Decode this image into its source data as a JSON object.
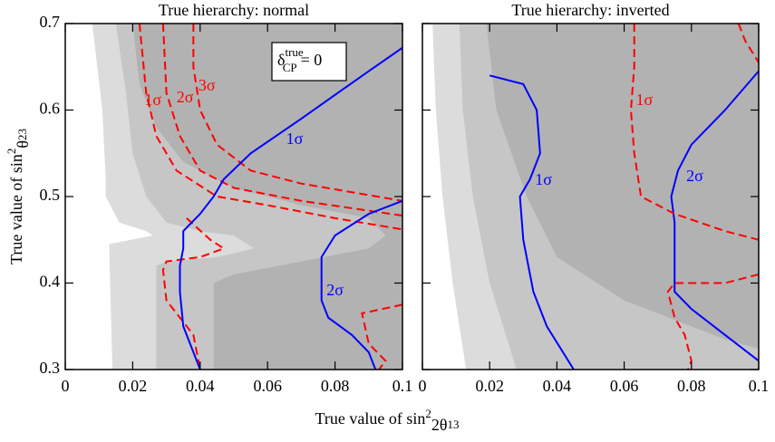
{
  "chart_data": [
    {
      "type": "contour",
      "title": "True hierarchy: normal",
      "x_label": [
        "True value of sin",
        "2",
        "2θ",
        "13"
      ],
      "y_label": [
        "True value of sin",
        "2",
        "θ",
        "23"
      ],
      "note": [
        "δ",
        "true",
        "CP",
        "= 0"
      ],
      "xlim": [
        0,
        0.1
      ],
      "ylim": [
        0.3,
        0.7
      ],
      "xticks": [
        0,
        0.02,
        0.04,
        0.06,
        0.08,
        0.1
      ],
      "yticks": [
        0.3,
        0.4,
        0.5,
        0.6,
        0.7
      ],
      "regions": [
        {
          "color": "#dcdcdc",
          "x": [
            0.008,
            0.011,
            0.012,
            0.012,
            0.016,
            0.024,
            0.026,
            0.022,
            0.013,
            0.014,
            0.1,
            0.1
          ],
          "y": [
            0.7,
            0.6,
            0.52,
            0.5,
            0.47,
            0.46,
            0.455,
            0.452,
            0.445,
            0.3,
            0.3,
            0.7
          ]
        },
        {
          "color": "#c6c6c6",
          "x": [
            0.015,
            0.018,
            0.02,
            0.024,
            0.03,
            0.04,
            0.05,
            0.056,
            0.045,
            0.03,
            0.027,
            0.027,
            0.1,
            0.1
          ],
          "y": [
            0.7,
            0.62,
            0.55,
            0.5,
            0.47,
            0.46,
            0.455,
            0.44,
            0.43,
            0.425,
            0.42,
            0.3,
            0.3,
            0.7
          ]
        },
        {
          "color": "#b2b2b2",
          "x": [
            0.02,
            0.022,
            0.027,
            0.035,
            0.05,
            0.07,
            0.09,
            0.095,
            0.09,
            0.07,
            0.05,
            0.044,
            0.044,
            0.1,
            0.1
          ],
          "y": [
            0.7,
            0.63,
            0.58,
            0.54,
            0.51,
            0.49,
            0.475,
            0.455,
            0.44,
            0.425,
            0.41,
            0.4,
            0.3,
            0.3,
            0.7
          ]
        }
      ],
      "contours": [
        {
          "label": "3σ",
          "color": "#ff0000",
          "dashed": true,
          "label_x": 0.042,
          "label_y": 0.627,
          "x": [
            0.038,
            0.038,
            0.04,
            0.045,
            0.055,
            0.07,
            0.085,
            0.1
          ],
          "y": [
            0.7,
            0.65,
            0.6,
            0.56,
            0.53,
            0.515,
            0.505,
            0.495
          ]
        },
        {
          "label": "2σ",
          "color": "#ff0000",
          "dashed": true,
          "label_x": 0.0355,
          "label_y": 0.613,
          "x": [
            0.029,
            0.03,
            0.034,
            0.04,
            0.05,
            0.07,
            0.1
          ],
          "y": [
            0.7,
            0.62,
            0.57,
            0.53,
            0.51,
            0.495,
            0.478
          ]
        },
        {
          "label": "1σ",
          "color": "#ff0000",
          "dashed": true,
          "label_x": 0.026,
          "label_y": 0.61,
          "x": [
            0.022,
            0.024,
            0.027,
            0.033,
            0.045,
            0.06,
            0.08,
            0.1,
            null,
            0.036,
            0.043,
            0.047,
            0.04,
            0.03,
            0.029,
            0.03,
            0.034,
            0.038,
            0.04,
            null,
            0.1,
            0.088,
            0.09,
            0.095,
            0.093
          ],
          "y": [
            0.7,
            0.62,
            0.57,
            0.53,
            0.5,
            0.49,
            0.475,
            0.462,
            null,
            0.475,
            0.45,
            0.44,
            0.43,
            0.425,
            0.415,
            0.38,
            0.36,
            0.34,
            0.3,
            null,
            0.375,
            0.365,
            0.33,
            0.31,
            0.3
          ]
        },
        {
          "label": "1σ",
          "color": "#0000ff",
          "dashed": false,
          "label_x": 0.068,
          "label_y": 0.565,
          "x": [
            0.1,
            0.09,
            0.07,
            0.055,
            0.047,
            0.044,
            0.04,
            0.035,
            0.035,
            0.034,
            0.034,
            0.035,
            0.04
          ],
          "y": [
            0.672,
            0.645,
            0.59,
            0.55,
            0.52,
            0.5,
            0.48,
            0.46,
            0.44,
            0.42,
            0.39,
            0.35,
            0.3
          ]
        },
        {
          "label": "2σ",
          "color": "#0000ff",
          "dashed": false,
          "label_x": 0.08,
          "label_y": 0.39,
          "x": [
            0.1,
            0.09,
            0.08,
            0.076,
            0.076,
            0.078,
            0.085,
            0.09,
            0.092
          ],
          "y": [
            0.495,
            0.48,
            0.455,
            0.43,
            0.38,
            0.36,
            0.34,
            0.32,
            0.3
          ]
        }
      ]
    },
    {
      "type": "contour",
      "title": "True hierarchy: inverted",
      "xlim": [
        0,
        0.1
      ],
      "ylim": [
        0.3,
        0.7
      ],
      "xticks": [
        0,
        0.02,
        0.04,
        0.06,
        0.08,
        0.1
      ],
      "yticks": [
        0.3,
        0.4,
        0.5,
        0.6,
        0.7
      ],
      "regions": [
        {
          "color": "#dcdcdc",
          "x": [
            0.003,
            0.004,
            0.006,
            0.009,
            0.013,
            0.1,
            0.1
          ],
          "y": [
            0.7,
            0.6,
            0.5,
            0.4,
            0.3,
            0.3,
            0.7
          ]
        },
        {
          "color": "#c6c6c6",
          "x": [
            0.011,
            0.012,
            0.015,
            0.02,
            0.028,
            0.1,
            0.1
          ],
          "y": [
            0.7,
            0.6,
            0.5,
            0.4,
            0.3,
            0.3,
            0.7
          ]
        },
        {
          "color": "#b2b2b2",
          "x": [
            0.019,
            0.022,
            0.031,
            0.04,
            0.06,
            0.09,
            0.1,
            0.1
          ],
          "y": [
            0.7,
            0.6,
            0.5,
            0.43,
            0.38,
            0.335,
            0.324,
            0.7
          ]
        }
      ],
      "contours": [
        {
          "label": "1σ",
          "color": "#0000ff",
          "dashed": false,
          "label_x": 0.036,
          "label_y": 0.518,
          "x": [
            0.02,
            0.03,
            0.034,
            0.035,
            0.032,
            0.029,
            0.03,
            0.033,
            0.037,
            0.045
          ],
          "y": [
            0.64,
            0.63,
            0.6,
            0.55,
            0.52,
            0.5,
            0.45,
            0.39,
            0.35,
            0.3
          ]
        },
        {
          "label": "2σ",
          "color": "#0000ff",
          "dashed": false,
          "label_x": 0.081,
          "label_y": 0.522,
          "x": [
            0.1,
            0.09,
            0.08,
            0.076,
            0.074,
            0.075,
            0.075,
            0.075,
            0.08,
            0.09,
            0.1
          ],
          "y": [
            0.645,
            0.6,
            0.56,
            0.53,
            0.5,
            0.47,
            0.43,
            0.39,
            0.37,
            0.34,
            0.31
          ]
        },
        {
          "label": "1σ",
          "color": "#ff0000",
          "dashed": true,
          "label_x": 0.066,
          "label_y": 0.61,
          "x": [
            0.063,
            0.063,
            0.062,
            0.063,
            0.065,
            0.075,
            0.09,
            0.1,
            null,
            0.1,
            0.09,
            0.075,
            0.073,
            0.075,
            0.078,
            0.08,
            0.079,
            null,
            0.094,
            0.096,
            0.1
          ],
          "y": [
            0.7,
            0.65,
            0.6,
            0.55,
            0.5,
            0.48,
            0.46,
            0.45,
            null,
            0.41,
            0.4,
            0.4,
            0.39,
            0.36,
            0.34,
            0.31,
            0.3,
            null,
            0.7,
            0.68,
            0.655
          ]
        }
      ]
    }
  ]
}
